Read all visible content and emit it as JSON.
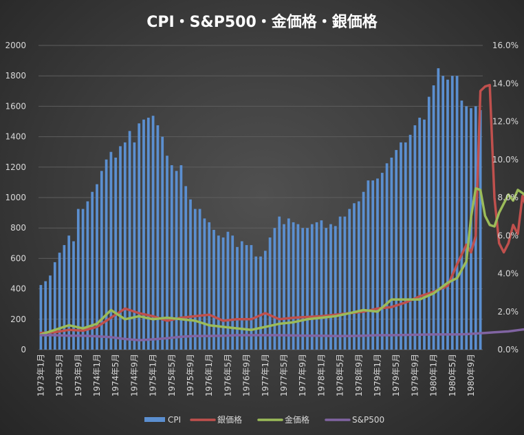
{
  "chart_data": {
    "type": "bar+line",
    "title": "CPI・S&P500・金価格・銀価格",
    "y_left": {
      "min": 0,
      "max": 2000,
      "step": 200,
      "ticks": [
        "0",
        "200",
        "400",
        "600",
        "800",
        "1000",
        "1200",
        "1400",
        "1600",
        "1800",
        "2000"
      ]
    },
    "y_right": {
      "min": 0,
      "max": 16,
      "step": 2,
      "ticks": [
        "0.0%",
        "2.0%",
        "4.0%",
        "6.0%",
        "8.0%",
        "10.0%",
        "12.0%",
        "14.0%",
        "16.0%"
      ]
    },
    "x_tick_labels": [
      "1973年1月",
      "1973年5月",
      "1973年9月",
      "1974年1月",
      "1974年5月",
      "1974年9月",
      "1975年1月",
      "1975年5月",
      "1975年9月",
      "1976年1月",
      "1976年5月",
      "1976年9月",
      "1977年1月",
      "1977年5月",
      "1977年9月",
      "1978年1月",
      "1978年5月",
      "1978年9月",
      "1979年1月",
      "1979年5月",
      "1979年9月",
      "1980年1月",
      "1980年5月",
      "1980年9月"
    ],
    "grid": true,
    "legend_position": "bottom",
    "series": [
      {
        "name": "CPI",
        "kind": "bar",
        "axis": "right",
        "color": "#5b8fd0",
        "unit": "%",
        "values": [
          3.4,
          3.6,
          3.9,
          4.6,
          5.1,
          5.5,
          6.0,
          5.7,
          7.4,
          7.4,
          7.8,
          8.3,
          8.7,
          9.4,
          10.0,
          10.4,
          10.1,
          10.7,
          10.9,
          11.5,
          10.9,
          11.9,
          12.1,
          12.2,
          12.3,
          11.8,
          11.2,
          10.2,
          9.7,
          9.4,
          9.7,
          8.6,
          7.9,
          7.4,
          7.4,
          6.9,
          6.7,
          6.3,
          6.0,
          5.9,
          6.2,
          6.0,
          5.4,
          5.7,
          5.5,
          5.5,
          4.9,
          4.9,
          5.2,
          5.9,
          6.4,
          7.0,
          6.6,
          6.9,
          6.7,
          6.6,
          6.4,
          6.4,
          6.6,
          6.7,
          6.8,
          6.4,
          6.6,
          6.5,
          7.0,
          7.0,
          7.4,
          7.7,
          7.8,
          8.3,
          8.9,
          8.9,
          9.0,
          9.3,
          9.8,
          10.1,
          10.5,
          10.9,
          10.9,
          11.3,
          11.8,
          12.2,
          12.1,
          13.3,
          13.9,
          14.8,
          14.4,
          14.2,
          14.4,
          14.4,
          13.1,
          12.8,
          12.7,
          12.8,
          12.6
        ]
      },
      {
        "name": "銀価格",
        "kind": "line",
        "axis": "left",
        "color": "#c0504d",
        "x_index": [
          0,
          3,
          6,
          9,
          12,
          15,
          18,
          21,
          24,
          27,
          30,
          33,
          36,
          39,
          42,
          45,
          48,
          51,
          54,
          57,
          60,
          63,
          66,
          69,
          72,
          75,
          78,
          81,
          84,
          87,
          89,
          91,
          92,
          93,
          94,
          95,
          96,
          97,
          98,
          99,
          100,
          101,
          102,
          103,
          104,
          105
        ],
        "values": [
          110,
          115,
          130,
          125,
          150,
          210,
          270,
          240,
          220,
          190,
          210,
          220,
          230,
          190,
          200,
          200,
          240,
          200,
          210,
          215,
          220,
          230,
          240,
          250,
          270,
          280,
          310,
          350,
          380,
          420,
          560,
          690,
          640,
          750,
          1700,
          1730,
          1740,
          1000,
          700,
          640,
          700,
          820,
          760,
          1010,
          920,
          780
        ]
      },
      {
        "name": "金価格",
        "kind": "line",
        "axis": "left",
        "color": "#9bbb59",
        "x_index": [
          0,
          3,
          6,
          9,
          12,
          15,
          18,
          21,
          24,
          27,
          30,
          33,
          36,
          39,
          42,
          45,
          48,
          51,
          54,
          57,
          60,
          63,
          66,
          69,
          72,
          75,
          78,
          81,
          84,
          87,
          89,
          91,
          92,
          93,
          94,
          95,
          96,
          97,
          98,
          99,
          100,
          101,
          102,
          103,
          104,
          105
        ],
        "values": [
          100,
          130,
          160,
          140,
          170,
          260,
          200,
          220,
          200,
          210,
          200,
          190,
          160,
          150,
          140,
          130,
          150,
          170,
          180,
          200,
          210,
          220,
          240,
          260,
          250,
          330,
          330,
          330,
          370,
          440,
          470,
          580,
          870,
          1060,
          1050,
          880,
          820,
          810,
          900,
          960,
          1020,
          980,
          1050,
          1030,
          1000,
          930
        ]
      },
      {
        "name": "S&P500",
        "kind": "line",
        "axis": "left",
        "color": "#8064a2",
        "x_index": [
          0,
          3,
          6,
          9,
          12,
          15,
          18,
          21,
          24,
          27,
          30,
          33,
          36,
          39,
          42,
          45,
          48,
          51,
          54,
          57,
          60,
          63,
          66,
          69,
          72,
          75,
          78,
          81,
          84,
          87,
          89,
          91,
          92,
          93,
          94,
          95,
          96,
          97,
          98,
          99,
          100,
          101,
          102,
          103,
          104,
          105
        ],
        "values": [
          95,
          95,
          92,
          92,
          88,
          82,
          70,
          62,
          68,
          75,
          85,
          90,
          90,
          92,
          95,
          95,
          95,
          95,
          93,
          92,
          92,
          90,
          90,
          92,
          95,
          95,
          97,
          98,
          100,
          100,
          100,
          102,
          104,
          106,
          108,
          110,
          112,
          114,
          116,
          118,
          120,
          124,
          128,
          132,
          134,
          138
        ]
      }
    ]
  }
}
